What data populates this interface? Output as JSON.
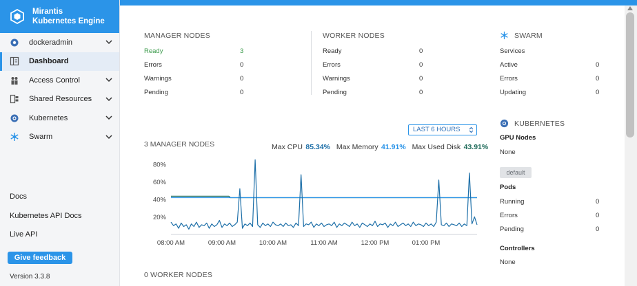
{
  "brand": {
    "line1": "Mirantis",
    "line2": "Kubernetes Engine"
  },
  "sidebar": {
    "items": [
      {
        "label": "dockeradmin",
        "icon": "user-icon"
      },
      {
        "label": "Dashboard",
        "icon": "dashboard-icon"
      },
      {
        "label": "Access Control",
        "icon": "users-icon"
      },
      {
        "label": "Shared Resources",
        "icon": "layers-icon"
      },
      {
        "label": "Kubernetes",
        "icon": "kubernetes-icon"
      },
      {
        "label": "Swarm",
        "icon": "swarm-icon"
      }
    ],
    "links": [
      "Docs",
      "Kubernetes API Docs",
      "Live API"
    ],
    "feedback": "Give feedback",
    "version": "Version 3.3.8"
  },
  "manager": {
    "title": "MANAGER NODES",
    "rows": [
      {
        "label": "Ready",
        "value": "3"
      },
      {
        "label": "Errors",
        "value": "0"
      },
      {
        "label": "Warnings",
        "value": "0"
      },
      {
        "label": "Pending",
        "value": "0"
      }
    ]
  },
  "worker": {
    "title": "WORKER NODES",
    "rows": [
      {
        "label": "Ready",
        "value": "0"
      },
      {
        "label": "Errors",
        "value": "0"
      },
      {
        "label": "Warnings",
        "value": "0"
      },
      {
        "label": "Pending",
        "value": "0"
      }
    ]
  },
  "swarm": {
    "title": "SWARM",
    "rows": [
      {
        "label": "Services",
        "value": ""
      },
      {
        "label": "Active",
        "value": "0"
      },
      {
        "label": "Errors",
        "value": "0"
      },
      {
        "label": "Updating",
        "value": "0"
      }
    ]
  },
  "kubernetes": {
    "title": "KUBERNETES",
    "gpu_label": "GPU Nodes",
    "gpu_value": "None",
    "namespace": "default",
    "pods_label": "Pods",
    "pods": [
      {
        "label": "Running",
        "value": "0"
      },
      {
        "label": "Errors",
        "value": "0"
      },
      {
        "label": "Pending",
        "value": "0"
      }
    ],
    "controllers_label": "Controllers",
    "controllers_value": "None"
  },
  "time_range": "LAST 6 HOURS",
  "manager_chart": {
    "title": "3 MANAGER NODES",
    "max_cpu_label": "Max CPU",
    "max_cpu": "85.34%",
    "max_mem_label": "Max Memory",
    "max_mem": "41.91%",
    "max_disk_label": "Max Used Disk",
    "max_disk": "43.91%"
  },
  "worker_chart_title": "0 WORKER NODES",
  "colors": {
    "accent": "#2b94e8",
    "cpu": "#1d6fa8",
    "memory": "#2b94e8",
    "disk": "#1f6b5a",
    "ready": "#3a9a4a"
  },
  "chart_data": {
    "type": "line",
    "ylim": [
      0,
      90
    ],
    "y_ticks": [
      "80%",
      "60%",
      "40%",
      "20%"
    ],
    "y_tick_values": [
      80,
      60,
      40,
      20
    ],
    "x_ticks": [
      "08:00 AM",
      "09:00 AM",
      "10:00 AM",
      "11:00 AM",
      "12:00 PM",
      "01:00 PM"
    ],
    "x_tick_values": [
      0,
      60,
      120,
      180,
      240,
      300
    ],
    "x_range": [
      0,
      360
    ],
    "series": [
      {
        "name": "Max Used Disk",
        "points": [
          [
            0,
            43.5
          ],
          [
            68,
            43.5
          ],
          [
            70,
            41.9
          ],
          [
            360,
            41.9
          ]
        ]
      },
      {
        "name": "Max Memory",
        "points": [
          [
            0,
            41.9
          ],
          [
            360,
            41.9
          ]
        ]
      },
      {
        "name": "Max CPU",
        "points": [
          [
            0,
            14
          ],
          [
            3,
            10
          ],
          [
            6,
            12
          ],
          [
            9,
            7
          ],
          [
            12,
            13
          ],
          [
            15,
            9
          ],
          [
            18,
            11
          ],
          [
            21,
            6
          ],
          [
            24,
            12
          ],
          [
            27,
            9
          ],
          [
            30,
            14
          ],
          [
            33,
            8
          ],
          [
            36,
            11
          ],
          [
            39,
            10
          ],
          [
            42,
            13
          ],
          [
            45,
            7
          ],
          [
            48,
            12
          ],
          [
            51,
            9
          ],
          [
            54,
            11
          ],
          [
            57,
            16
          ],
          [
            60,
            8
          ],
          [
            63,
            12
          ],
          [
            66,
            10
          ],
          [
            69,
            13
          ],
          [
            72,
            9
          ],
          [
            75,
            11
          ],
          [
            78,
            14
          ],
          [
            81,
            52
          ],
          [
            84,
            7
          ],
          [
            87,
            12
          ],
          [
            90,
            10
          ],
          [
            93,
            13
          ],
          [
            96,
            9
          ],
          [
            99,
            85
          ],
          [
            102,
            11
          ],
          [
            105,
            8
          ],
          [
            108,
            13
          ],
          [
            111,
            10
          ],
          [
            114,
            12
          ],
          [
            117,
            9
          ],
          [
            120,
            14
          ],
          [
            123,
            11
          ],
          [
            126,
            10
          ],
          [
            129,
            12
          ],
          [
            132,
            9
          ],
          [
            135,
            13
          ],
          [
            138,
            10
          ],
          [
            141,
            11
          ],
          [
            144,
            8
          ],
          [
            147,
            13
          ],
          [
            150,
            10
          ],
          [
            153,
            68
          ],
          [
            156,
            9
          ],
          [
            159,
            12
          ],
          [
            162,
            11
          ],
          [
            165,
            14
          ],
          [
            168,
            8
          ],
          [
            171,
            12
          ],
          [
            174,
            10
          ],
          [
            177,
            13
          ],
          [
            180,
            9
          ],
          [
            183,
            11
          ],
          [
            186,
            12
          ],
          [
            189,
            10
          ],
          [
            192,
            14
          ],
          [
            195,
            8
          ],
          [
            198,
            12
          ],
          [
            201,
            10
          ],
          [
            204,
            13
          ],
          [
            207,
            11
          ],
          [
            210,
            9
          ],
          [
            213,
            14
          ],
          [
            216,
            10
          ],
          [
            219,
            12
          ],
          [
            222,
            8
          ],
          [
            225,
            13
          ],
          [
            228,
            11
          ],
          [
            231,
            9
          ],
          [
            234,
            12
          ],
          [
            237,
            10
          ],
          [
            240,
            15
          ],
          [
            243,
            9
          ],
          [
            246,
            12
          ],
          [
            249,
            11
          ],
          [
            252,
            13
          ],
          [
            255,
            8
          ],
          [
            258,
            12
          ],
          [
            261,
            10
          ],
          [
            264,
            14
          ],
          [
            267,
            9
          ],
          [
            270,
            11
          ],
          [
            273,
            13
          ],
          [
            276,
            10
          ],
          [
            279,
            12
          ],
          [
            282,
            9
          ],
          [
            285,
            14
          ],
          [
            288,
            10
          ],
          [
            291,
            12
          ],
          [
            294,
            11
          ],
          [
            297,
            9
          ],
          [
            300,
            13
          ],
          [
            303,
            10
          ],
          [
            306,
            12
          ],
          [
            309,
            9
          ],
          [
            312,
            14
          ],
          [
            315,
            62
          ],
          [
            318,
            11
          ],
          [
            321,
            10
          ],
          [
            324,
            13
          ],
          [
            327,
            9
          ],
          [
            330,
            12
          ],
          [
            333,
            11
          ],
          [
            336,
            10
          ],
          [
            339,
            13
          ],
          [
            342,
            9
          ],
          [
            345,
            12
          ],
          [
            348,
            10
          ],
          [
            351,
            70
          ],
          [
            354,
            12
          ],
          [
            357,
            20
          ],
          [
            360,
            11
          ]
        ]
      }
    ]
  }
}
